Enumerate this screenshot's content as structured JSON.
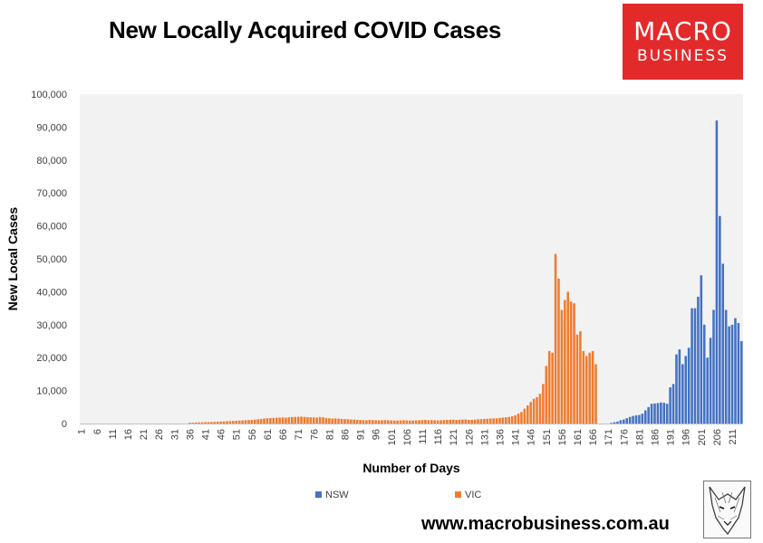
{
  "header": {
    "title": "New Locally Acquired COVID Cases"
  },
  "logo": {
    "line1": "MACRO",
    "line2": "BUSINESS",
    "color": "#e32a2a",
    "icon": "wolf-sketch-icon"
  },
  "footer": {
    "url": "www.macrobusiness.com.au"
  },
  "colors": {
    "nsw": "#4472c4",
    "vic": "#ed7d31",
    "plot_bg": "#f2f2f2"
  },
  "chart_data": {
    "type": "bar",
    "title": "New Locally Acquired COVID Cases",
    "xlabel": "Number of Days",
    "ylabel": "New Local Cases",
    "ylim": [
      0,
      100000
    ],
    "yticks": [
      "0",
      "10,000",
      "20,000",
      "30,000",
      "40,000",
      "50,000",
      "60,000",
      "70,000",
      "80,000",
      "90,000",
      "100,000"
    ],
    "xtick_labels": [
      "1",
      "6",
      "11",
      "16",
      "21",
      "26",
      "31",
      "36",
      "41",
      "46",
      "51",
      "56",
      "61",
      "66",
      "71",
      "76",
      "81",
      "86",
      "91",
      "96",
      "101",
      "106",
      "111",
      "116",
      "121",
      "126",
      "131",
      "136",
      "141",
      "146",
      "151",
      "156",
      "161",
      "166",
      "171",
      "176",
      "181",
      "186",
      "191",
      "196",
      "201",
      "206",
      "211"
    ],
    "days": 214,
    "grid": false,
    "legend_position": "bottom",
    "series": [
      {
        "name": "NSW",
        "color": "#4472c4",
        "values": [
          0,
          0,
          0,
          0,
          0,
          0,
          0,
          0,
          0,
          0,
          0,
          0,
          0,
          0,
          0,
          0,
          0,
          0,
          0,
          0,
          0,
          0,
          0,
          0,
          0,
          0,
          0,
          0,
          0,
          0,
          0,
          0,
          0,
          0,
          0,
          0,
          0,
          0,
          0,
          0,
          0,
          0,
          0,
          0,
          0,
          0,
          0,
          0,
          0,
          0,
          0,
          0,
          0,
          0,
          0,
          0,
          0,
          0,
          0,
          0,
          0,
          0,
          0,
          0,
          0,
          0,
          0,
          0,
          0,
          0,
          0,
          0,
          0,
          0,
          0,
          0,
          0,
          0,
          0,
          0,
          0,
          0,
          0,
          0,
          0,
          0,
          0,
          0,
          0,
          0,
          0,
          0,
          0,
          0,
          0,
          0,
          0,
          0,
          0,
          0,
          0,
          0,
          0,
          0,
          0,
          0,
          0,
          0,
          0,
          0,
          0,
          0,
          0,
          0,
          0,
          0,
          0,
          0,
          0,
          0,
          0,
          0,
          0,
          0,
          0,
          0,
          0,
          0,
          0,
          0,
          0,
          0,
          0,
          0,
          0,
          0,
          0,
          0,
          0,
          0,
          0,
          0,
          0,
          0,
          0,
          0,
          0,
          0,
          0,
          0,
          0,
          0,
          0,
          0,
          0,
          0,
          0,
          0,
          0,
          0,
          0,
          0,
          0,
          0,
          0,
          0,
          0,
          0,
          0,
          0,
          0,
          200,
          400,
          600,
          1000,
          1200,
          1600,
          2000,
          2300,
          2500,
          2600,
          3000,
          4000,
          5000,
          6000,
          6100,
          6200,
          6400,
          6300,
          6000,
          11000,
          12000,
          21000,
          22500,
          18000,
          20500,
          23000,
          35000,
          35000,
          38500,
          45000,
          30000,
          20000,
          26000,
          34500,
          92000,
          63000,
          48500,
          34500,
          29500,
          30000,
          32000,
          30500,
          25000
        ]
      },
      {
        "name": "VIC",
        "color": "#ed7d31",
        "values": [
          0,
          0,
          0,
          0,
          0,
          0,
          0,
          0,
          0,
          0,
          0,
          0,
          0,
          0,
          0,
          0,
          0,
          0,
          0,
          0,
          0,
          0,
          0,
          0,
          0,
          0,
          0,
          0,
          0,
          0,
          0,
          0,
          0,
          0,
          0,
          250,
          280,
          320,
          350,
          380,
          420,
          450,
          480,
          520,
          560,
          600,
          650,
          700,
          750,
          800,
          850,
          900,
          950,
          1000,
          1050,
          1100,
          1200,
          1300,
          1400,
          1500,
          1600,
          1650,
          1700,
          1750,
          1800,
          1850,
          1800,
          1900,
          1950,
          2000,
          2050,
          2100,
          2000,
          1950,
          1900,
          1850,
          1800,
          2000,
          1900,
          1700,
          1600,
          1500,
          1550,
          1500,
          1400,
          1350,
          1300,
          1250,
          1200,
          1150,
          1100,
          1050,
          1000,
          1100,
          1050,
          1000,
          950,
          1000,
          1050,
          1000,
          950,
          900,
          900,
          950,
          1000,
          950,
          900,
          900,
          950,
          1000,
          1050,
          1100,
          1000,
          1050,
          1000,
          950,
          1000,
          1050,
          1100,
          1150,
          1200,
          1100,
          1150,
          1200,
          1250,
          1100,
          1150,
          1200,
          1300,
          1350,
          1400,
          1450,
          1500,
          1550,
          1600,
          1700,
          1800,
          1900,
          2000,
          2200,
          2500,
          3000,
          3500,
          4500,
          5500,
          6500,
          7500,
          8000,
          9000,
          12000,
          17500,
          22000,
          21500,
          51500,
          44000,
          34500,
          37500,
          40000,
          37000,
          36500,
          27000,
          28000,
          22000,
          20500,
          21500,
          22000,
          18000,
          0,
          0,
          0,
          0,
          0,
          0,
          0,
          0,
          0,
          0,
          0,
          0,
          0,
          0,
          0,
          0,
          0,
          0,
          0,
          0,
          0,
          0,
          0,
          0,
          0,
          0,
          0,
          0,
          0,
          0,
          0,
          0,
          0,
          0,
          0,
          0,
          0,
          0,
          0,
          0,
          0,
          0,
          0,
          0,
          0
        ]
      }
    ]
  }
}
